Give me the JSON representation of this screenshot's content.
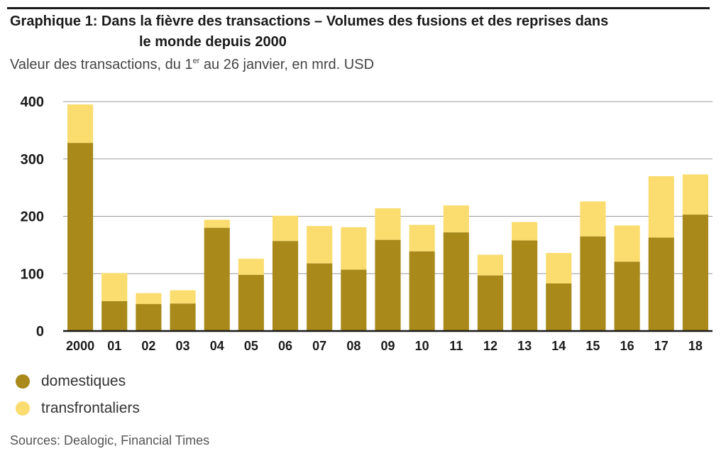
{
  "title_line1": "Graphique 1: Dans la fièvre des transactions – Volumes des fusions et des reprises dans",
  "title_line2": "le monde depuis 2000",
  "subtitle_before": "Valeur des transactions, du 1",
  "subtitle_sup": "er",
  "subtitle_after": " au 26 janvier, en mrd. USD",
  "source": "Sources: Dealogic, Financial Times",
  "colors": {
    "domestiques": "#a8891a",
    "transfrontaliers": "#fbdc6e",
    "axis": "#1a1a1a",
    "grid": "#9a9a9a"
  },
  "chart_data": {
    "type": "bar",
    "stacked": true,
    "categories": [
      "2000",
      "01",
      "02",
      "03",
      "04",
      "05",
      "06",
      "07",
      "08",
      "09",
      "10",
      "11",
      "12",
      "13",
      "14",
      "15",
      "16",
      "17",
      "18"
    ],
    "series": [
      {
        "name": "domestiques",
        "values": [
          328,
          52,
          47,
          48,
          180,
          98,
          157,
          118,
          107,
          159,
          139,
          172,
          97,
          158,
          83,
          165,
          121,
          163,
          203
        ]
      },
      {
        "name": "transfrontaliers",
        "values": [
          67,
          49,
          19,
          23,
          14,
          28,
          44,
          65,
          74,
          55,
          46,
          47,
          36,
          32,
          53,
          61,
          63,
          107,
          70
        ]
      }
    ],
    "yticks": [
      0,
      100,
      200,
      300,
      400
    ],
    "ylim": [
      0,
      400
    ],
    "grid": true,
    "legend": "bottom-left"
  }
}
